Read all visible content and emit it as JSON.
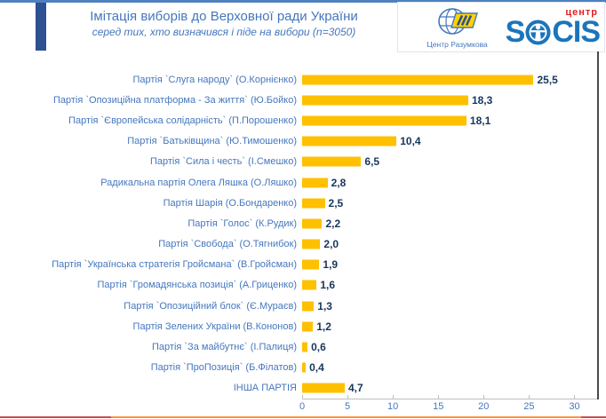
{
  "slide": {
    "title": "Імітація виборів до Верховної ради України",
    "subtitle": "серед тих, хто визначився і піде на вибори (n=3050)"
  },
  "logos": {
    "razumkov": {
      "label": "Центр Разумкова"
    },
    "socis": {
      "prefix": "S",
      "suffix": "CIS",
      "center_label": "центр"
    }
  },
  "colors": {
    "bar": "#FFC000",
    "category_label": "#4577BE",
    "value_label": "#17365D",
    "title_text": "#4577BE",
    "axis_line": "#BFBFBF",
    "top_line": "#4F81BD",
    "left_accent_bar": "#2D5191",
    "bottom_line_left": "#C0504D",
    "bottom_line_middle": "#F79646",
    "bottom_line_right": "#C0504D",
    "socis_blue": "#1B75BB",
    "socis_red": "#E31E24",
    "plot_right_border": "#4a4a4a"
  },
  "chart_data": {
    "type": "bar",
    "orientation": "horizontal",
    "title": "Імітація виборів до Верховної ради України",
    "subtitle": "серед тих, хто визначився і піде на вибори (n=3050)",
    "categories": [
      "Партія `Слуга народу` (О.Корнієнко)",
      "Партія `Опозиційна платформа - За життя` (Ю.Бойко)",
      "Партія `Європейська солідарність` (П.Порошенко)",
      "Партія `Батьківщина` (Ю.Тимошенко)",
      "Партія `Сила і честь` (І.Смешко)",
      "Радикальна партія Олега Ляшка (О.Ляшко)",
      "Партія Шарія (О.Бондаренко)",
      "Партія `Голос` (К.Рудик)",
      "Партія `Свобода` (О.Тягнибок)",
      "Партія `Українська стратегія Гройсмана` (В.Гройсман)",
      "Партія `Громадянська позиція` (А.Гриценко)",
      "Партія `Опозиційний блок` (Є.Мураєв)",
      "Партія Зелених України (В.Кононов)",
      "Партія `За майбутнє` (І.Палиця)",
      "Партія `ПроПозиція` (Б.Філатов)",
      "ІНША ПАРТІЯ"
    ],
    "values": [
      25.5,
      18.3,
      18.1,
      10.4,
      6.5,
      2.8,
      2.5,
      2.2,
      2.0,
      1.9,
      1.6,
      1.3,
      1.2,
      0.6,
      0.4,
      4.7
    ],
    "value_labels": [
      "25,5",
      "18,3",
      "18,1",
      "10,4",
      "6,5",
      "2,8",
      "2,5",
      "2,2",
      "2,0",
      "1,9",
      "1,6",
      "1,3",
      "1,2",
      "0,6",
      "0,4",
      "4,7"
    ],
    "xlim": [
      0,
      30
    ],
    "x_ticks": [
      0,
      5,
      10,
      15,
      20,
      25,
      30
    ],
    "grid": false,
    "legend": false,
    "bar_color": "#FFC000"
  }
}
